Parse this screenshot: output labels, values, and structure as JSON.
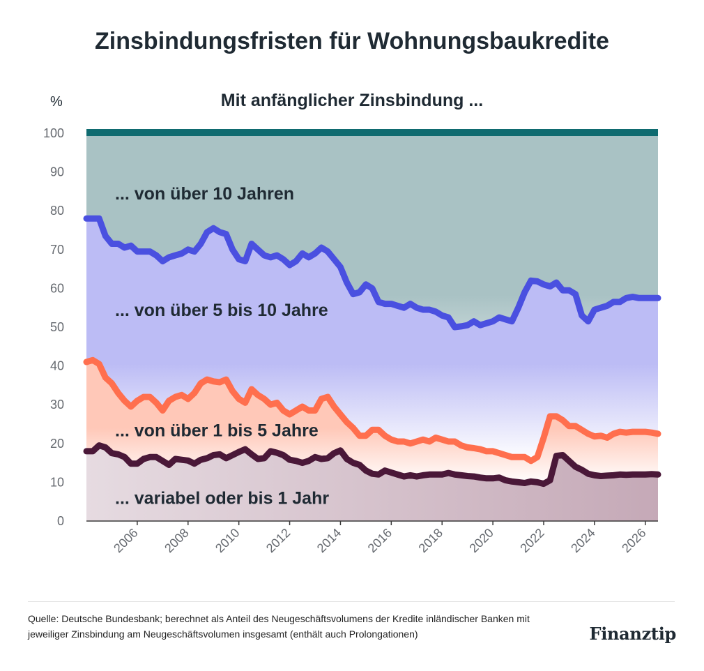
{
  "title": "Zinsbindungsfristen für Wohnungsbaukredite",
  "source": "Quelle: Deutsche Bundesbank; berechnet als Anteil des Neugeschäftsvolumens der Kredite inländischer Banken mit jeweiliger Zinsbindung am Neugeschäftsvolumen insgesamt (enthält auch Prolongationen)",
  "brand": "Finanztip",
  "chart_data": {
    "type": "area",
    "subtitle": "Mit anfänglicher Zinsbindung ...",
    "ylabel": "%",
    "ylim": [
      0,
      100
    ],
    "xlim": [
      2004.0,
      2026.5
    ],
    "yticks": [
      0,
      10,
      20,
      30,
      40,
      50,
      60,
      70,
      80,
      90,
      100
    ],
    "xticks": [
      2006,
      2008,
      2010,
      2012,
      2014,
      2016,
      2018,
      2020,
      2022,
      2024,
      2026
    ],
    "grid": false,
    "stacked": true,
    "colors": {
      "top_line": "#0f6b70",
      "gt10_fill": "#a9c2c4",
      "gt5_line": "#4a50e0",
      "gt5_fill": "#bcbcf5",
      "gt1_line": "#ff6f4e",
      "gt1_fill": "#ffc8b8",
      "var_line": "#4a1838",
      "var_fill": "#ddc8d2"
    },
    "labels": {
      "gt10": "... von über 10 Jahren",
      "gt5": "... von über 5 bis 10 Jahre",
      "gt1": "... von über 1 bis 5 Jahre",
      "var": "... variabel oder bis 1 Jahr"
    },
    "x": [
      2004.0,
      2004.25,
      2004.5,
      2004.75,
      2005.0,
      2005.25,
      2005.5,
      2005.75,
      2006.0,
      2006.25,
      2006.5,
      2006.75,
      2007.0,
      2007.25,
      2007.5,
      2007.75,
      2008.0,
      2008.25,
      2008.5,
      2008.75,
      2009.0,
      2009.25,
      2009.5,
      2009.75,
      2010.0,
      2010.25,
      2010.5,
      2010.75,
      2011.0,
      2011.25,
      2011.5,
      2011.75,
      2012.0,
      2012.25,
      2012.5,
      2012.75,
      2013.0,
      2013.25,
      2013.5,
      2013.75,
      2014.0,
      2014.25,
      2014.5,
      2014.75,
      2015.0,
      2015.25,
      2015.5,
      2015.75,
      2016.0,
      2016.25,
      2016.5,
      2016.75,
      2017.0,
      2017.25,
      2017.5,
      2017.75,
      2018.0,
      2018.25,
      2018.5,
      2018.75,
      2019.0,
      2019.25,
      2019.5,
      2019.75,
      2020.0,
      2020.25,
      2020.5,
      2020.75,
      2021.0,
      2021.25,
      2021.5,
      2021.75,
      2022.0,
      2022.25,
      2022.5,
      2022.75,
      2023.0,
      2023.25,
      2023.5,
      2023.75,
      2024.0,
      2024.25,
      2024.5,
      2024.75,
      2025.0,
      2025.25,
      2025.5,
      2025.75,
      2026.0,
      2026.25,
      2026.5
    ],
    "series": [
      {
        "name": "... variabel oder bis 1 Jahr",
        "values": [
          18.0,
          18.0,
          19.5,
          19.0,
          17.5,
          17.2,
          16.5,
          14.8,
          14.8,
          16.0,
          16.5,
          16.5,
          15.5,
          14.5,
          16.0,
          15.8,
          15.6,
          14.8,
          15.8,
          16.2,
          17.0,
          17.2,
          16.2,
          17.0,
          17.8,
          18.5,
          17.2,
          16.0,
          16.2,
          18.0,
          17.6,
          17.0,
          15.8,
          15.5,
          15.0,
          15.5,
          16.5,
          16.0,
          16.2,
          17.5,
          18.2,
          16.0,
          15.0,
          14.5,
          13.0,
          12.2,
          12.0,
          13.0,
          12.5,
          12.0,
          11.5,
          11.8,
          11.5,
          11.8,
          12.0,
          12.0,
          12.0,
          12.4,
          12.0,
          11.8,
          11.6,
          11.5,
          11.2,
          11.0,
          11.0,
          11.2,
          10.5,
          10.2,
          10.0,
          9.8,
          10.2,
          10.0,
          9.6,
          10.5,
          16.8,
          17.0,
          15.5,
          14.0,
          13.2,
          12.2,
          11.8,
          11.6,
          11.7,
          11.8,
          12.0,
          11.9,
          12.0,
          12.0,
          12.0,
          12.1,
          12.0
        ]
      },
      {
        "name": "... von über 1 bis 5 Jahre",
        "values": [
          41.0,
          41.5,
          40.5,
          37.0,
          35.5,
          33.0,
          31.0,
          29.5,
          31.0,
          32.0,
          32.0,
          30.5,
          28.5,
          31.0,
          32.0,
          32.5,
          31.5,
          33.0,
          35.5,
          36.5,
          36.0,
          35.8,
          36.5,
          33.5,
          31.5,
          30.5,
          34.0,
          32.5,
          31.5,
          30.0,
          30.5,
          28.5,
          27.5,
          28.5,
          29.5,
          28.5,
          28.5,
          31.5,
          32.0,
          29.5,
          27.5,
          25.5,
          24.0,
          22.0,
          22.0,
          23.5,
          23.5,
          22.0,
          21.0,
          20.5,
          20.5,
          20.0,
          20.5,
          21.0,
          20.5,
          21.5,
          21.0,
          20.5,
          20.5,
          19.5,
          19.0,
          18.8,
          18.5,
          18.0,
          18.0,
          17.5,
          17.0,
          16.5,
          16.5,
          16.5,
          15.5,
          16.5,
          21.5,
          27.0,
          27.0,
          26.0,
          24.5,
          24.5,
          23.5,
          22.5,
          21.8,
          22.0,
          21.5,
          22.5,
          23.0,
          22.8,
          23.0,
          23.0,
          23.0,
          22.8,
          22.5
        ]
      },
      {
        "name": "... von über 5 bis 10 Jahre",
        "values": [
          78.0,
          78.0,
          78.0,
          73.5,
          71.5,
          71.5,
          70.5,
          71.0,
          69.5,
          69.5,
          69.5,
          68.5,
          67.0,
          68.0,
          68.5,
          69.0,
          70.0,
          69.5,
          71.5,
          74.5,
          75.5,
          74.5,
          74.0,
          70.0,
          67.5,
          67.0,
          71.5,
          70.0,
          68.5,
          68.0,
          68.5,
          67.5,
          66.0,
          67.0,
          69.0,
          68.0,
          69.0,
          70.5,
          69.5,
          67.5,
          65.5,
          61.5,
          58.5,
          59.0,
          61.0,
          60.0,
          56.5,
          56.0,
          56.0,
          55.5,
          55.0,
          56.0,
          55.0,
          54.5,
          54.5,
          54.0,
          53.0,
          52.5,
          50.0,
          50.2,
          50.5,
          51.5,
          50.5,
          51.0,
          51.5,
          52.5,
          52.0,
          51.5,
          55.0,
          59.0,
          62.0,
          61.8,
          61.0,
          60.5,
          61.5,
          59.5,
          59.5,
          58.5,
          53.0,
          51.5,
          54.5,
          55.0,
          55.5,
          56.5,
          56.5,
          57.5,
          57.8,
          57.5,
          57.5,
          57.5,
          57.5
        ]
      }
    ]
  }
}
